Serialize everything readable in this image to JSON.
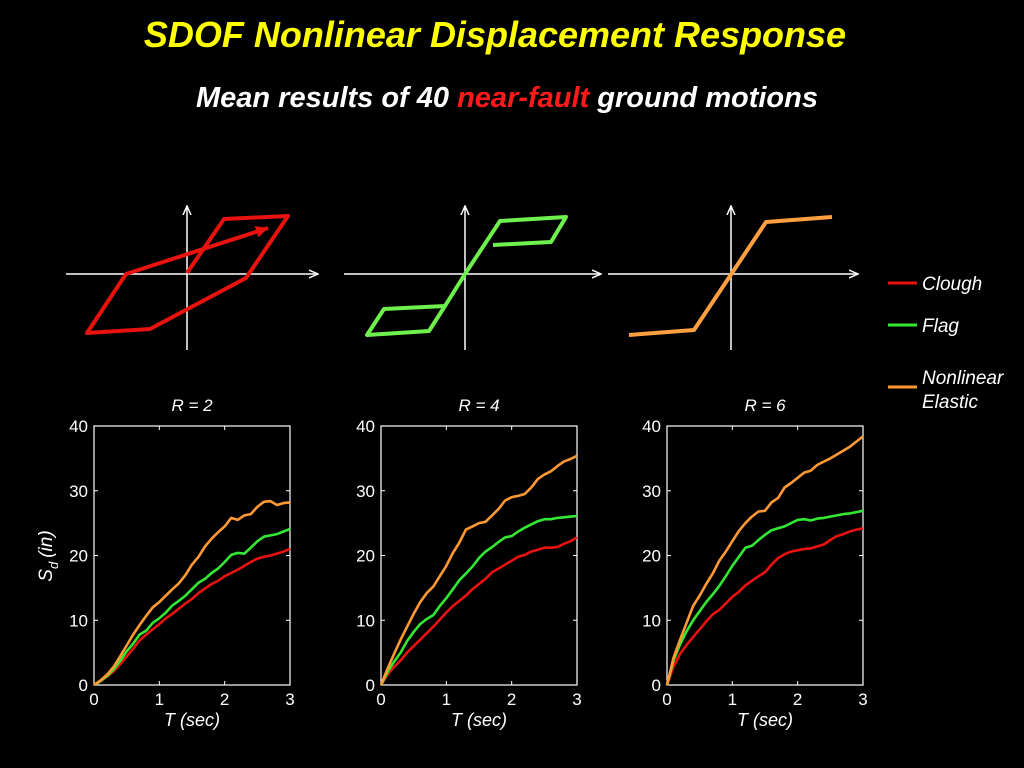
{
  "title": "SDOF Nonlinear Displacement Response",
  "subtitle": {
    "part1": "Mean results of 40 ",
    "highlight": "near-fault",
    "part2": " ground motions"
  },
  "colors": {
    "title": "#ffff00",
    "highlight": "#ff1a1a",
    "clough": "#e8120f",
    "flag": "#33e833",
    "nonlinear_elastic": "#ff9933"
  },
  "hysteresis_icons": [
    {
      "model": "clough",
      "color": "#e8120f"
    },
    {
      "model": "flag",
      "color": "#6ef04d"
    },
    {
      "model": "nonlinear_elastic",
      "color": "#ffa040"
    }
  ],
  "legend": [
    {
      "key": "clough",
      "label": "Clough",
      "color": "#e8120f"
    },
    {
      "key": "flag",
      "label": "Flag",
      "color": "#33e833"
    },
    {
      "key": "nonlinear_elastic",
      "label": "Nonlinear",
      "label2": "Elastic",
      "color": "#ff9933"
    }
  ],
  "chart_data": [
    {
      "type": "line",
      "title": "R = 2",
      "xlabel": "T (sec)",
      "ylabel": "S",
      "ylabel_sub": "d",
      "ylabel_unit": "(in)",
      "xlim": [
        0,
        3
      ],
      "ylim": [
        0,
        40
      ],
      "xticks": [
        0,
        1,
        2,
        3
      ],
      "yticks": [
        0,
        10,
        20,
        30,
        40
      ],
      "x": [
        0,
        0.1,
        0.2,
        0.3,
        0.4,
        0.5,
        0.6,
        0.7,
        0.8,
        0.9,
        1.0,
        1.1,
        1.2,
        1.3,
        1.4,
        1.5,
        1.6,
        1.7,
        1.8,
        1.9,
        2.0,
        2.1,
        2.2,
        2.3,
        2.4,
        2.5,
        2.6,
        2.7,
        2.8,
        2.9,
        3.0
      ],
      "series": [
        {
          "name": "Clough",
          "color": "#e8120f",
          "values": [
            0,
            0.6,
            1.3,
            2.1,
            3.2,
            4.4,
            5.6,
            6.9,
            7.8,
            8.6,
            9.4,
            10.3,
            11.0,
            11.8,
            12.6,
            13.3,
            14.2,
            14.9,
            15.6,
            16.1,
            16.8,
            17.3,
            17.8,
            18.4,
            19.0,
            19.5,
            19.8,
            20.0,
            20.3,
            20.6,
            21.0
          ]
        },
        {
          "name": "Flag",
          "color": "#33e833",
          "values": [
            0,
            0.6,
            1.4,
            2.4,
            3.7,
            5.2,
            6.4,
            7.8,
            8.4,
            9.6,
            10.3,
            11.2,
            12.3,
            13.0,
            13.8,
            14.8,
            15.8,
            16.4,
            17.3,
            18.0,
            19.0,
            20.1,
            20.4,
            20.3,
            21.2,
            22.2,
            22.9,
            23.1,
            23.3,
            23.7,
            24.1
          ]
        },
        {
          "name": "Nonlinear Elastic",
          "color": "#ff9933",
          "values": [
            0,
            0.7,
            1.6,
            2.8,
            4.4,
            6.1,
            7.8,
            9.3,
            10.7,
            12.0,
            12.8,
            13.8,
            14.8,
            15.7,
            17.0,
            18.6,
            19.8,
            21.4,
            22.6,
            23.6,
            24.5,
            25.8,
            25.5,
            26.2,
            26.4,
            27.5,
            28.3,
            28.4,
            27.8,
            28.1,
            28.2
          ]
        }
      ]
    },
    {
      "type": "line",
      "title": "R = 4",
      "xlabel": "T (sec)",
      "xlim": [
        0,
        3
      ],
      "ylim": [
        0,
        40
      ],
      "xticks": [
        0,
        1,
        2,
        3
      ],
      "yticks": [
        0,
        10,
        20,
        30,
        40
      ],
      "x": [
        0,
        0.1,
        0.2,
        0.3,
        0.4,
        0.5,
        0.6,
        0.7,
        0.8,
        0.9,
        1.0,
        1.1,
        1.2,
        1.3,
        1.4,
        1.5,
        1.6,
        1.7,
        1.8,
        1.9,
        2.0,
        2.1,
        2.2,
        2.3,
        2.4,
        2.5,
        2.6,
        2.7,
        2.8,
        2.9,
        3.0
      ],
      "series": [
        {
          "name": "Clough",
          "color": "#e8120f",
          "values": [
            0,
            1.6,
            2.8,
            3.8,
            5.0,
            6.0,
            7.0,
            8.0,
            9.0,
            10.1,
            11.2,
            12.2,
            13.0,
            13.8,
            14.8,
            15.6,
            16.4,
            17.4,
            18.0,
            18.6,
            19.2,
            19.8,
            20.1,
            20.6,
            20.9,
            21.2,
            21.2,
            21.3,
            21.8,
            22.2,
            22.8
          ]
        },
        {
          "name": "Flag",
          "color": "#33e833",
          "values": [
            0,
            2.0,
            3.6,
            5.0,
            6.8,
            8.2,
            9.4,
            10.2,
            10.8,
            12.2,
            13.4,
            14.8,
            16.2,
            17.2,
            18.3,
            19.6,
            20.6,
            21.3,
            22.1,
            22.8,
            23.0,
            23.7,
            24.3,
            24.8,
            25.3,
            25.6,
            25.6,
            25.8,
            25.9,
            26.0,
            26.1
          ]
        },
        {
          "name": "Nonlinear Elastic",
          "color": "#ff9933",
          "values": [
            0,
            2.5,
            4.8,
            7.0,
            9.0,
            11.0,
            12.8,
            14.2,
            15.2,
            16.8,
            18.4,
            20.4,
            22.0,
            24.0,
            24.5,
            25.0,
            25.2,
            26.2,
            27.2,
            28.5,
            29.0,
            29.2,
            29.5,
            30.5,
            31.8,
            32.5,
            33.0,
            33.8,
            34.5,
            34.9,
            35.4
          ]
        }
      ]
    },
    {
      "type": "line",
      "title": "R = 6",
      "xlabel": "T (sec)",
      "xlim": [
        0,
        3
      ],
      "ylim": [
        0,
        40
      ],
      "xticks": [
        0,
        1,
        2,
        3
      ],
      "yticks": [
        0,
        10,
        20,
        30,
        40
      ],
      "x": [
        0,
        0.1,
        0.2,
        0.3,
        0.4,
        0.5,
        0.6,
        0.7,
        0.8,
        0.9,
        1.0,
        1.1,
        1.2,
        1.3,
        1.4,
        1.5,
        1.6,
        1.7,
        1.8,
        1.9,
        2.0,
        2.1,
        2.2,
        2.3,
        2.4,
        2.5,
        2.6,
        2.7,
        2.8,
        2.9,
        3.0
      ],
      "series": [
        {
          "name": "Clough",
          "color": "#e8120f",
          "values": [
            0,
            2.8,
            4.8,
            6.2,
            7.4,
            8.6,
            9.8,
            10.9,
            11.6,
            12.6,
            13.6,
            14.4,
            15.4,
            16.1,
            16.8,
            17.4,
            18.6,
            19.6,
            20.2,
            20.6,
            20.8,
            21.0,
            21.1,
            21.4,
            21.7,
            22.4,
            23.0,
            23.3,
            23.7,
            24.0,
            24.2
          ]
        },
        {
          "name": "Flag",
          "color": "#33e833",
          "values": [
            0,
            3.8,
            6.3,
            8.3,
            10.0,
            11.4,
            12.8,
            14.0,
            15.3,
            16.8,
            18.4,
            19.8,
            21.2,
            21.5,
            22.4,
            23.2,
            23.9,
            24.2,
            24.5,
            25.0,
            25.5,
            25.6,
            25.4,
            25.7,
            25.8,
            26.0,
            26.2,
            26.4,
            26.5,
            26.7,
            26.9
          ]
        },
        {
          "name": "Nonlinear Elastic",
          "color": "#ff9933",
          "values": [
            0,
            4.2,
            7.0,
            9.6,
            12.2,
            13.8,
            15.6,
            17.2,
            19.2,
            20.6,
            22.2,
            23.8,
            25.0,
            26.0,
            26.8,
            26.9,
            28.2,
            28.9,
            30.5,
            31.2,
            32.0,
            32.8,
            33.1,
            34.0,
            34.5,
            35.0,
            35.6,
            36.2,
            36.8,
            37.6,
            38.4
          ]
        }
      ]
    }
  ]
}
